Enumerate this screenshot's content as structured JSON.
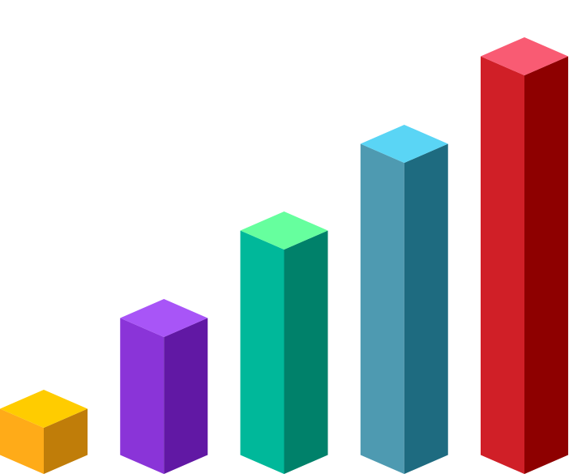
{
  "chart_data": {
    "type": "bar3d",
    "categories": [
      null,
      null,
      null,
      null,
      null
    ],
    "values": [
      57,
      169,
      277,
      384,
      492
    ],
    "colors": [
      {
        "top": "#ffcc00",
        "left": "#ffab18",
        "right": "#c07d09"
      },
      {
        "top": "#a855f7",
        "left": "#8a34d8",
        "right": "#6118a4"
      },
      {
        "top": "#66ff9e",
        "left": "#00b89a",
        "right": "#00816a"
      },
      {
        "top": "#5ad5f5",
        "left": "#4e9ab1",
        "right": "#1e6b80"
      },
      {
        "top": "#f95b73",
        "left": "#d01f27",
        "right": "#8e0000"
      }
    ]
  }
}
